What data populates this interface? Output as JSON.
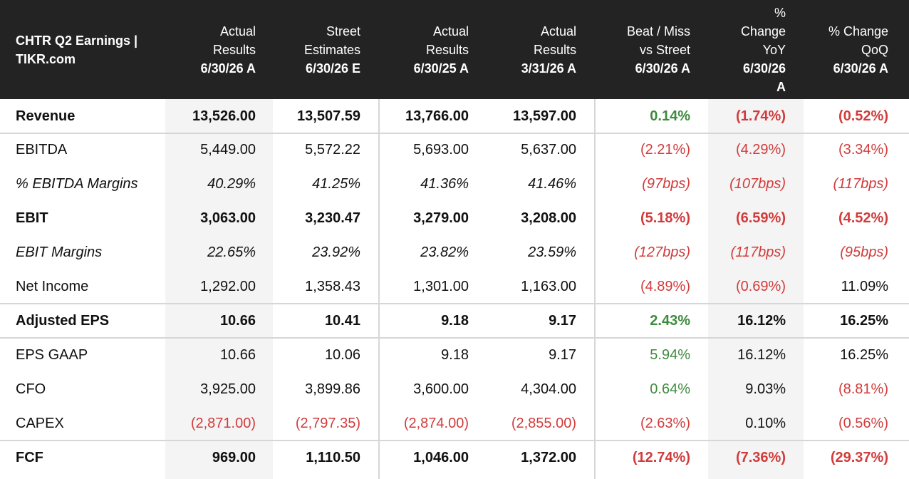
{
  "chart_data": {
    "type": "table",
    "title": "CHTR Q2 Earnings | TIKR.com",
    "title_lines": [
      "CHTR Q2 Earnings |",
      "TIKR.com"
    ],
    "columns": [
      {
        "lines": [
          "Actual",
          "Results",
          "6/30/26 A"
        ]
      },
      {
        "lines": [
          "Street",
          "Estimates",
          "6/30/26 E"
        ]
      },
      {
        "lines": [
          "Actual",
          "Results",
          "6/30/25 A"
        ]
      },
      {
        "lines": [
          "Actual",
          "Results",
          "3/31/26 A"
        ]
      },
      {
        "lines": [
          "Beat / Miss",
          "vs Street",
          "6/30/26 A"
        ]
      },
      {
        "lines": [
          "%",
          "Change",
          "YoY",
          "6/30/26",
          "A"
        ]
      },
      {
        "lines": [
          "% Change",
          "QoQ",
          "6/30/26 A"
        ]
      }
    ],
    "rows": [
      {
        "label": "Revenue",
        "style": "bold",
        "cells": [
          "13,526.00",
          "13,507.59",
          "13,766.00",
          "13,597.00",
          "0.14%",
          "(1.74%)",
          "(0.52%)"
        ]
      },
      {
        "label": "EBITDA",
        "style": "normal",
        "cells": [
          "5,449.00",
          "5,572.22",
          "5,693.00",
          "5,637.00",
          "(2.21%)",
          "(4.29%)",
          "(3.34%)"
        ]
      },
      {
        "label": "% EBITDA Margins",
        "style": "italic",
        "cells": [
          "40.29%",
          "41.25%",
          "41.36%",
          "41.46%",
          "(97bps)",
          "(107bps)",
          "(117bps)"
        ]
      },
      {
        "label": "EBIT",
        "style": "bold",
        "cells": [
          "3,063.00",
          "3,230.47",
          "3,279.00",
          "3,208.00",
          "(5.18%)",
          "(6.59%)",
          "(4.52%)"
        ]
      },
      {
        "label": "EBIT Margins",
        "style": "italic",
        "cells": [
          "22.65%",
          "23.92%",
          "23.82%",
          "23.59%",
          "(127bps)",
          "(117bps)",
          "(95bps)"
        ]
      },
      {
        "label": "Net Income",
        "style": "normal",
        "cells": [
          "1,292.00",
          "1,358.43",
          "1,301.00",
          "1,163.00",
          "(4.89%)",
          "(0.69%)",
          "11.09%"
        ]
      },
      {
        "label": "Adjusted EPS",
        "style": "bold",
        "cells": [
          "10.66",
          "10.41",
          "9.18",
          "9.17",
          "2.43%",
          "16.12%",
          "16.25%"
        ]
      },
      {
        "label": "EPS GAAP",
        "style": "normal",
        "cells": [
          "10.66",
          "10.06",
          "9.18",
          "9.17",
          "5.94%",
          "16.12%",
          "16.25%"
        ]
      },
      {
        "label": "CFO",
        "style": "normal",
        "cells": [
          "3,925.00",
          "3,899.86",
          "3,600.00",
          "4,304.00",
          "0.64%",
          "9.03%",
          "(8.81%)"
        ]
      },
      {
        "label": "CAPEX",
        "style": "normal",
        "cells": [
          "(2,871.00)",
          "(2,797.35)",
          "(2,874.00)",
          "(2,855.00)",
          "(2.63%)",
          "0.10%",
          "(0.56%)"
        ]
      },
      {
        "label": "FCF",
        "style": "bold",
        "cells": [
          "969.00",
          "1,110.50",
          "1,046.00",
          "1,372.00",
          "(12.74%)",
          "(7.36%)",
          "(29.37%)"
        ]
      }
    ],
    "colors": {
      "header_bg": "#232323",
      "header_text": "#ffffff",
      "negative": "#d23b3b",
      "positive_beat": "#3f8a3f",
      "shaded_column": "#f4f4f4",
      "separator": "#d6d6d6"
    }
  }
}
